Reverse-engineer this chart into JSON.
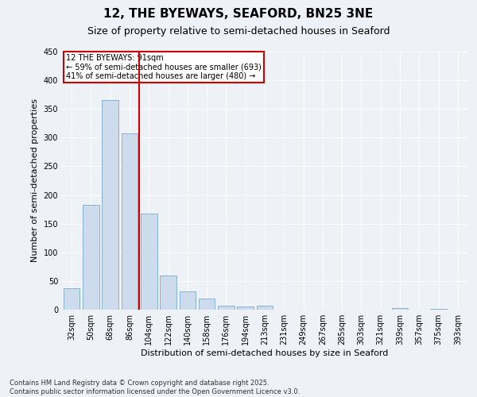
{
  "title": "12, THE BYEWAYS, SEAFORD, BN25 3NE",
  "subtitle": "Size of property relative to semi-detached houses in Seaford",
  "xlabel": "Distribution of semi-detached houses by size in Seaford",
  "ylabel": "Number of semi-detached properties",
  "categories": [
    "32sqm",
    "50sqm",
    "68sqm",
    "86sqm",
    "104sqm",
    "122sqm",
    "140sqm",
    "158sqm",
    "176sqm",
    "194sqm",
    "213sqm",
    "231sqm",
    "249sqm",
    "267sqm",
    "285sqm",
    "303sqm",
    "321sqm",
    "339sqm",
    "357sqm",
    "375sqm",
    "393sqm"
  ],
  "values": [
    38,
    183,
    365,
    308,
    168,
    60,
    32,
    19,
    7,
    5,
    7,
    0,
    0,
    0,
    0,
    0,
    0,
    3,
    0,
    2,
    0
  ],
  "bar_color": "#ccdcec",
  "bar_edge_color": "#7aaaca",
  "vline_color": "#cc0000",
  "annotation_title": "12 THE BYEWAYS: 91sqm",
  "annotation_line1": "← 59% of semi-detached houses are smaller (693)",
  "annotation_line2": "41% of semi-detached houses are larger (480) →",
  "annotation_box_color": "#cc0000",
  "ylim": [
    0,
    450
  ],
  "yticks": [
    0,
    50,
    100,
    150,
    200,
    250,
    300,
    350,
    400,
    450
  ],
  "footnote1": "Contains HM Land Registry data © Crown copyright and database right 2025.",
  "footnote2": "Contains public sector information licensed under the Open Government Licence v3.0.",
  "bg_color": "#eef2f6",
  "plot_bg_color": "#eef2f6",
  "grid_color": "#ffffff",
  "title_fontsize": 11,
  "subtitle_fontsize": 9,
  "axis_label_fontsize": 8,
  "tick_fontsize": 7,
  "footnote_fontsize": 6
}
